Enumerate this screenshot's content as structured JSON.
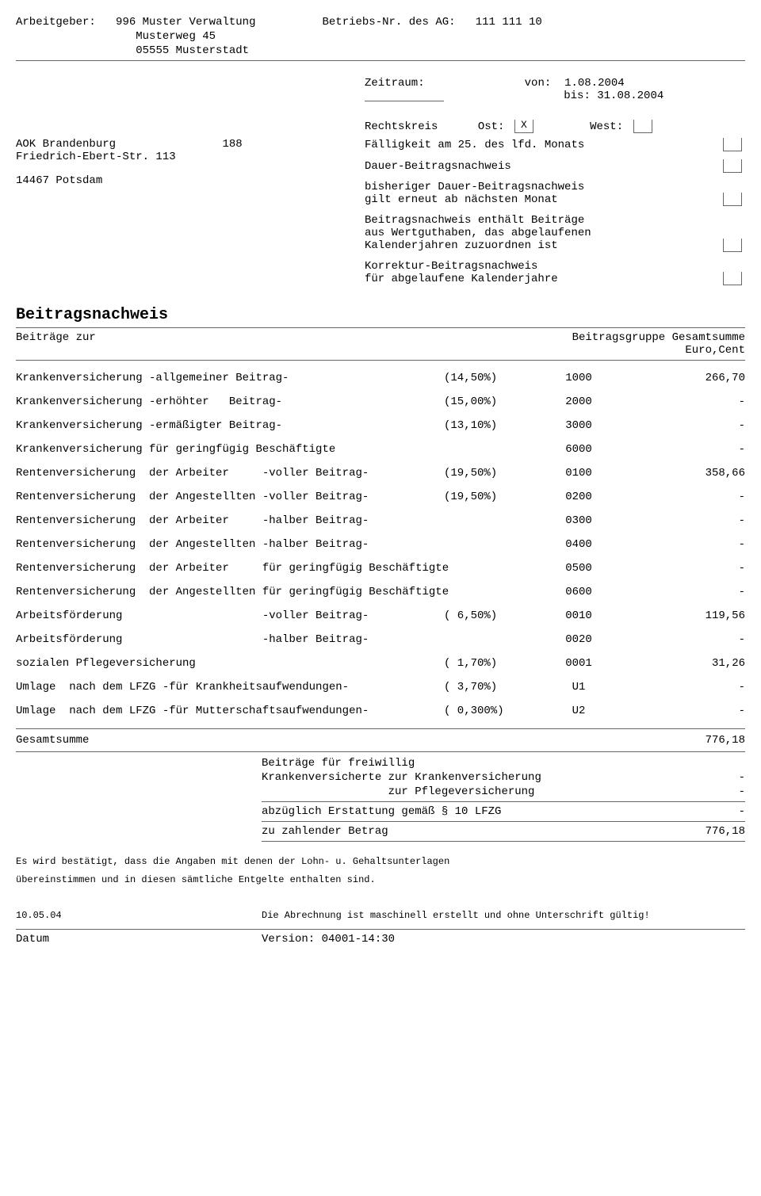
{
  "header": {
    "arbeitgeber_label": "Arbeitgeber:",
    "arbeitgeber_code": "996 Muster Verwaltung",
    "arbeitgeber_street": "Musterweg 45",
    "arbeitgeber_city": "05555 Musterstadt",
    "betriebsnr_label": "Betriebs-Nr. des AG:",
    "betriebsnr_value": "111 111 10"
  },
  "zeitraum": {
    "label": "Zeitraum:",
    "von_label": "von:",
    "von_value": "1.08.2004",
    "bis_label": "bis:",
    "bis_value": "31.08.2004"
  },
  "rechtskreis": {
    "label": "Rechtskreis",
    "ost_label": "Ost:",
    "ost_checked": "X",
    "west_label": "West:",
    "west_checked": ""
  },
  "kk": {
    "name": "AOK Brandenburg",
    "code": "188",
    "street": "Friedrich-Ebert-Str. 113",
    "city": "14467 Potsdam"
  },
  "right_lines": {
    "l1": "Fälligkeit am 25. des lfd. Monats",
    "l2": "Dauer-Beitragsnachweis",
    "l3a": "bisheriger Dauer-Beitragsnachweis",
    "l3b": "gilt erneut ab nächsten Monat",
    "l4a": "Beitragsnachweis enthält Beiträge",
    "l4b": "aus Wertguthaben, das abgelaufenen",
    "l4c": "Kalenderjahren zuzuordnen ist",
    "l5a": "Korrektur-Beitragsnachweis",
    "l5b": "für abgelaufene Kalenderjahre"
  },
  "title": "Beitragsnachweis",
  "table_header": {
    "left": "Beiträge zur",
    "r1": "Beitragsgruppe Gesamtsumme",
    "r2": "Euro,Cent"
  },
  "rows": [
    {
      "desc": "Krankenversicherung -allgemeiner Beitrag-",
      "pct": "(14,50%)",
      "grp": "1000",
      "sum": "266,70"
    },
    {
      "desc": "Krankenversicherung -erhöhter   Beitrag-",
      "pct": "(15,00%)",
      "grp": "2000",
      "sum": "-"
    },
    {
      "desc": "Krankenversicherung -ermäßigter Beitrag-",
      "pct": "(13,10%)",
      "grp": "3000",
      "sum": "-"
    },
    {
      "desc": "Krankenversicherung für geringfügig Beschäftigte",
      "pct": "",
      "grp": "6000",
      "sum": "-"
    },
    {
      "desc": "Rentenversicherung  der Arbeiter     -voller Beitrag-",
      "pct": "(19,50%)",
      "grp": "0100",
      "sum": "358,66"
    },
    {
      "desc": "Rentenversicherung  der Angestellten -voller Beitrag-",
      "pct": "(19,50%)",
      "grp": "0200",
      "sum": "-"
    },
    {
      "desc": "Rentenversicherung  der Arbeiter     -halber Beitrag-",
      "pct": "",
      "grp": "0300",
      "sum": "-"
    },
    {
      "desc": "Rentenversicherung  der Angestellten -halber Beitrag-",
      "pct": "",
      "grp": "0400",
      "sum": "-"
    },
    {
      "desc": "Rentenversicherung  der Arbeiter     für geringfügig Beschäftigte",
      "pct": "",
      "grp": "0500",
      "sum": "-"
    },
    {
      "desc": "Rentenversicherung  der Angestellten für geringfügig Beschäftigte",
      "pct": "",
      "grp": "0600",
      "sum": "-"
    },
    {
      "desc": "Arbeitsförderung                     -voller Beitrag-",
      "pct": "( 6,50%)",
      "grp": "0010",
      "sum": "119,56"
    },
    {
      "desc": "Arbeitsförderung                     -halber Beitrag-",
      "pct": "",
      "grp": "0020",
      "sum": "-"
    },
    {
      "desc": "sozialen Pflegeversicherung",
      "pct": "( 1,70%)",
      "grp": "0001",
      "sum": "31,26"
    },
    {
      "desc": "Umlage  nach dem LFZG -für Krankheitsaufwendungen-",
      "pct": "( 3,70%)",
      "grp": "U1",
      "sum": "-"
    },
    {
      "desc": "Umlage  nach dem LFZG -für Mutterschaftsaufwendungen-",
      "pct": "( 0,300%)",
      "grp": "U2",
      "sum": "-"
    }
  ],
  "total": {
    "label": "Gesamtsumme",
    "value": "776,18"
  },
  "footer": {
    "f1": "Beiträge für freiwillig",
    "f2": "Krankenversicherte zur Krankenversicherung",
    "f2v": "-",
    "f3": "                   zur Pflegeversicherung",
    "f3v": "-",
    "f4": "abzüglich Erstattung gemäß § 10 LFZG",
    "f4v": "-",
    "f5": "zu zahlender Betrag",
    "f5v": "776,18"
  },
  "confirm": {
    "l1": "Es wird bestätigt, dass die Angaben mit denen der Lohn- u. Gehaltsunterlagen",
    "l2": "übereinstimmen und in diesen sämtliche Entgelte enthalten sind."
  },
  "bottom": {
    "date": "10.05.04",
    "note": "Die Abrechnung ist maschinell erstellt und ohne Unterschrift gültig!",
    "datum_label": "Datum",
    "version_label": "Version:",
    "version_value": "04001-14:30"
  }
}
